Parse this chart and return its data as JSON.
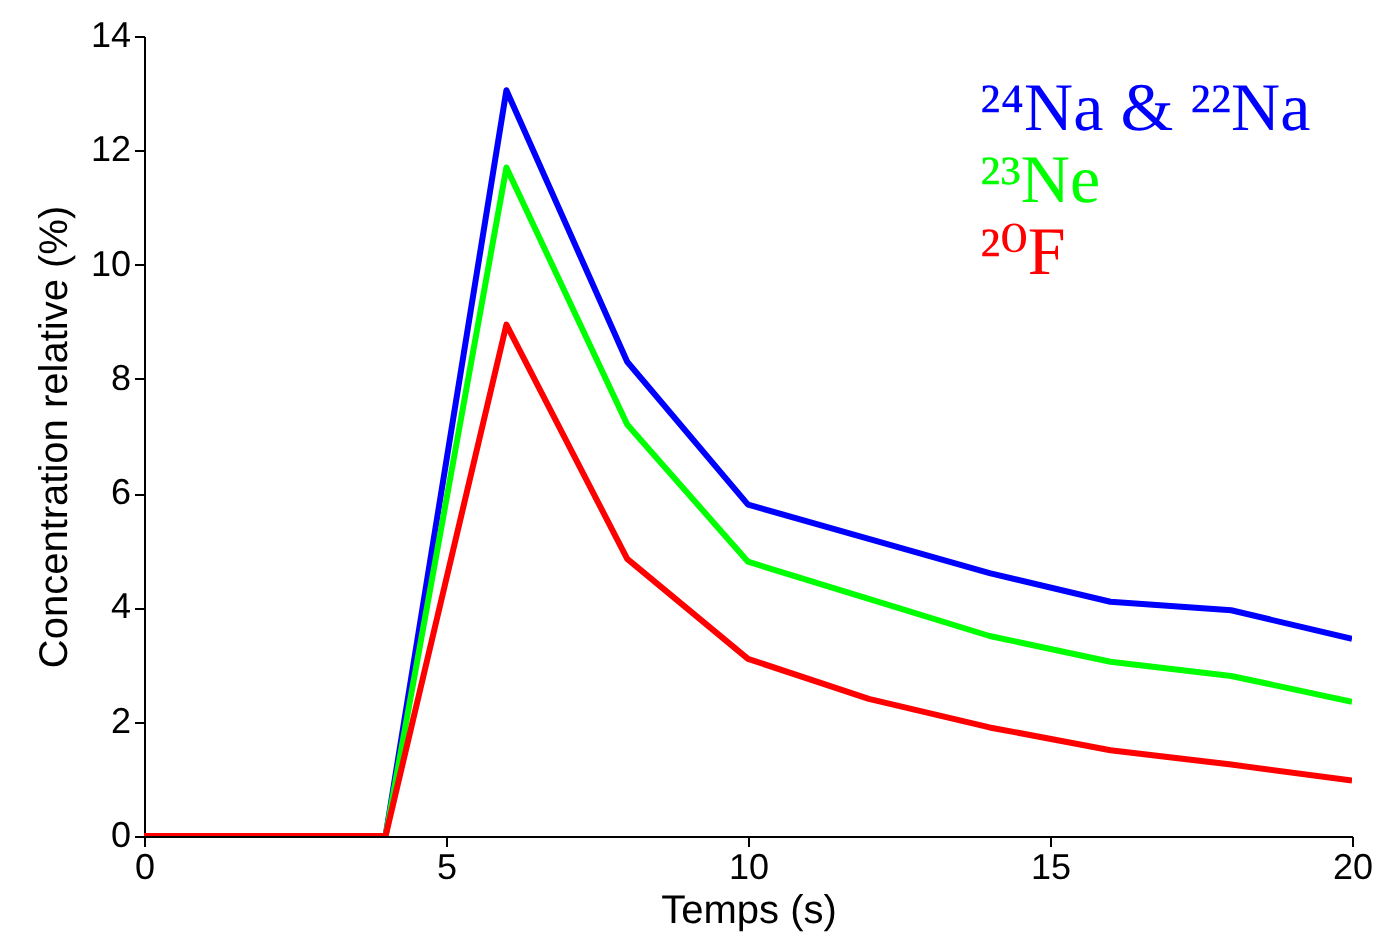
{
  "chart_data": {
    "type": "line",
    "xlabel": "Temps (s)",
    "ylabel": "Concentration relative (%)",
    "x": [
      0,
      2,
      4,
      6,
      8,
      10,
      12,
      14,
      16,
      18,
      20
    ],
    "xlim": [
      0,
      20
    ],
    "xticks": [
      0,
      5,
      10,
      15,
      20
    ],
    "ylim": [
      0,
      14
    ],
    "yticks": [
      0,
      2,
      4,
      6,
      8,
      10,
      12,
      14
    ],
    "grid": false,
    "legend": "top right",
    "line_style": "solid",
    "series": [
      {
        "name": "²⁴Na & ²²Na",
        "color": "#0000ff",
        "values": [
          0,
          0,
          0,
          13.05,
          8.3,
          5.8,
          5.2,
          4.6,
          4.1,
          3.95,
          3.45
        ]
      },
      {
        "name": "²³Ne",
        "color": "#00ff00",
        "values": [
          0,
          0,
          0,
          11.7,
          7.2,
          4.8,
          4.15,
          3.5,
          3.05,
          2.8,
          2.35
        ]
      },
      {
        "name": "²⁰F",
        "color": "#ff0000",
        "values": [
          0,
          0,
          0,
          8.95,
          4.85,
          3.1,
          2.4,
          1.9,
          1.5,
          1.25,
          0.97
        ]
      }
    ]
  }
}
